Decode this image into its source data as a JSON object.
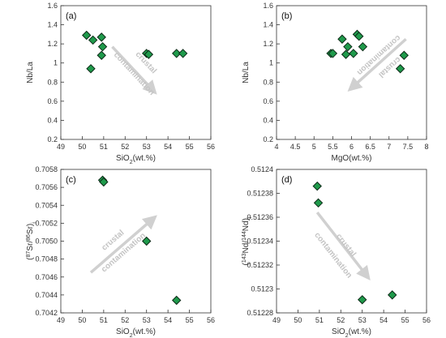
{
  "colors": {
    "marker_fill": "#1f9a4b",
    "marker_edge": "#0d2a17",
    "arrow": "#d0d0d0",
    "annotation_text": "#c4c4c4",
    "axis": "#333333"
  },
  "chart_data": [
    {
      "type": "scatter",
      "panel_label": "(a)",
      "xlabel": {
        "base": "SiO",
        "sub": "2",
        "rest": "(wt.%)"
      },
      "ylabel": "Nb/La",
      "xlim": [
        49,
        56
      ],
      "ylim": [
        0.2,
        1.6
      ],
      "xticks": [
        49,
        50,
        51,
        52,
        53,
        54,
        55,
        56
      ],
      "yticks": [
        0.2,
        0.4,
        0.6,
        0.8,
        1.0,
        1.2,
        1.4,
        1.6
      ],
      "xtick_labels": [
        "49",
        "50",
        "51",
        "52",
        "53",
        "54",
        "55",
        "56"
      ],
      "ytick_labels": [
        "0.2",
        "0.4",
        "0.6",
        "0.8",
        "1",
        "1.2",
        "1.4",
        "1.6"
      ],
      "points": [
        {
          "x": 50.2,
          "y": 1.29
        },
        {
          "x": 50.5,
          "y": 1.24
        },
        {
          "x": 50.4,
          "y": 0.94
        },
        {
          "x": 50.9,
          "y": 1.27
        },
        {
          "x": 50.95,
          "y": 1.17
        },
        {
          "x": 50.9,
          "y": 1.08
        },
        {
          "x": 53.0,
          "y": 1.1
        },
        {
          "x": 53.1,
          "y": 1.09
        },
        {
          "x": 54.4,
          "y": 1.1
        },
        {
          "x": 54.7,
          "y": 1.1
        }
      ],
      "arrow": {
        "from": {
          "x": 51.4,
          "y": 1.17
        },
        "to": {
          "x": 53.4,
          "y": 0.69
        }
      },
      "annotation": [
        "crustal",
        "contamination"
      ]
    },
    {
      "type": "scatter",
      "panel_label": "(b)",
      "xlabel": {
        "base": "MgO",
        "sub": "",
        "rest": "(wt.%)"
      },
      "ylabel": "Nb/La",
      "xlim": [
        4,
        8
      ],
      "ylim": [
        0.2,
        1.6
      ],
      "xticks": [
        4,
        4.5,
        5,
        5.5,
        6,
        6.5,
        7,
        7.5,
        8
      ],
      "yticks": [
        0.2,
        0.4,
        0.6,
        0.8,
        1.0,
        1.2,
        1.4,
        1.6
      ],
      "xtick_labels": [
        "4",
        "4.5",
        "5",
        "5.5",
        "6",
        "6.5",
        "7",
        "7.5",
        "8"
      ],
      "ytick_labels": [
        "0.2",
        "0.4",
        "0.6",
        "0.8",
        "1",
        "1.2",
        "1.4",
        "1.6"
      ],
      "points": [
        {
          "x": 5.45,
          "y": 1.1
        },
        {
          "x": 5.5,
          "y": 1.1
        },
        {
          "x": 5.75,
          "y": 1.25
        },
        {
          "x": 5.85,
          "y": 1.09
        },
        {
          "x": 5.9,
          "y": 1.17
        },
        {
          "x": 6.05,
          "y": 1.1
        },
        {
          "x": 6.15,
          "y": 1.3
        },
        {
          "x": 6.2,
          "y": 1.28
        },
        {
          "x": 6.3,
          "y": 1.17
        },
        {
          "x": 7.3,
          "y": 0.94
        },
        {
          "x": 7.4,
          "y": 1.08
        }
      ],
      "arrow": {
        "from": {
          "x": 7.45,
          "y": 1.25
        },
        "to": {
          "x": 5.95,
          "y": 0.72
        }
      },
      "annotation": [
        "crustal",
        "contamination"
      ]
    },
    {
      "type": "scatter",
      "panel_label": "(c)",
      "xlabel": {
        "base": "SiO",
        "sub": "2",
        "rest": "(wt.%)"
      },
      "ylabel": {
        "p1": "(",
        "sup1": "87",
        "p2": "Sr/",
        "sup2": "86",
        "p3": "Sr)",
        "sub": "i"
      },
      "xlim": [
        49,
        56
      ],
      "ylim": [
        0.7042,
        0.7058
      ],
      "xticks": [
        49,
        50,
        51,
        52,
        53,
        54,
        55,
        56
      ],
      "yticks": [
        0.7042,
        0.7044,
        0.7046,
        0.7048,
        0.705,
        0.7052,
        0.7054,
        0.7056,
        0.7058
      ],
      "xtick_labels": [
        "49",
        "50",
        "51",
        "52",
        "53",
        "54",
        "55",
        "56"
      ],
      "ytick_labels": [
        "0.7042",
        "0.7044",
        "0.7046",
        "0.7048",
        "0.7050",
        "0.7052",
        "0.7054",
        "0.7056",
        "0.7058"
      ],
      "points": [
        {
          "x": 50.95,
          "y": 0.70568
        },
        {
          "x": 51.0,
          "y": 0.70566
        },
        {
          "x": 53.0,
          "y": 0.705
        },
        {
          "x": 54.4,
          "y": 0.70434
        }
      ],
      "arrow": {
        "from": {
          "x": 50.4,
          "y": 0.70465
        },
        "to": {
          "x": 53.4,
          "y": 0.70527
        }
      },
      "annotation": [
        "crustal",
        "contamination"
      ]
    },
    {
      "type": "scatter",
      "panel_label": "(d)",
      "xlabel": {
        "base": "SiO",
        "sub": "2",
        "rest": "(wt.%)"
      },
      "ylabel": {
        "p1": "(",
        "sup1": "143",
        "p2": "Nd/",
        "sup2": "144",
        "p3": "Nd)",
        "sub": "i"
      },
      "xlim": [
        49,
        56
      ],
      "ylim": [
        0.51228,
        0.5124
      ],
      "xticks": [
        49,
        50,
        51,
        52,
        53,
        54,
        55,
        56
      ],
      "yticks": [
        0.51228,
        0.5123,
        0.51232,
        0.51234,
        0.51236,
        0.51238,
        0.5124
      ],
      "xtick_labels": [
        "49",
        "50",
        "51",
        "52",
        "53",
        "54",
        "55",
        "56"
      ],
      "ytick_labels": [
        "0.51228",
        "0.5123",
        "0.51232",
        "0.51234",
        "0.51236",
        "0.51238",
        "0.5124"
      ],
      "points": [
        {
          "x": 50.9,
          "y": 0.512386
        },
        {
          "x": 50.95,
          "y": 0.512372
        },
        {
          "x": 53.0,
          "y": 0.512291
        },
        {
          "x": 54.4,
          "y": 0.512295
        }
      ],
      "arrow": {
        "from": {
          "x": 50.9,
          "y": 0.512364
        },
        "to": {
          "x": 53.3,
          "y": 0.512309
        }
      },
      "annotation": [
        "crustal",
        "contamination"
      ]
    }
  ]
}
